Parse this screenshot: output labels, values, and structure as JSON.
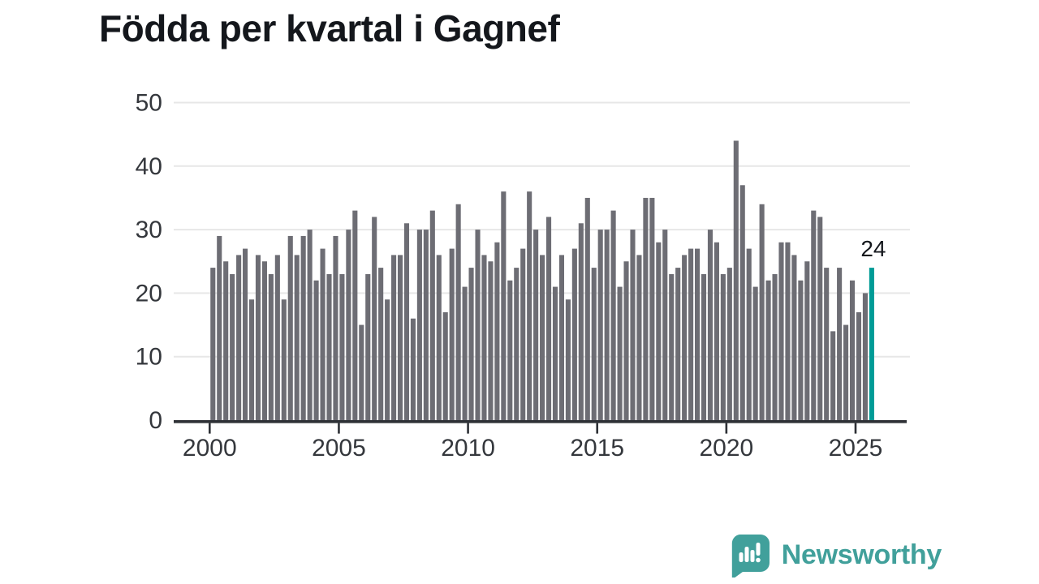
{
  "title": "Födda per kvartal i Gagnef",
  "annotation": {
    "label": "24"
  },
  "branding": {
    "name": "Newsworthy",
    "color": "#41a09b",
    "icon": "speech-bubble-bar-chart-icon"
  },
  "chart_data": {
    "type": "bar",
    "title": "Födda per kvartal i Gagnef",
    "xlabel": "",
    "ylabel": "",
    "x_unit": "quarter",
    "start_period": "2000 Q1",
    "end_period": "2025 Q3",
    "ylim": [
      0,
      50
    ],
    "y_ticks": [
      0,
      10,
      20,
      30,
      40,
      50
    ],
    "x_tick_years": [
      2000,
      2005,
      2010,
      2015,
      2020,
      2025
    ],
    "x_tick_labels": [
      "2000",
      "2005",
      "2010",
      "2015",
      "2020",
      "2025"
    ],
    "grid": true,
    "bar_color": "#6d6d74",
    "highlight": {
      "index": 102,
      "period": "2025 Q3",
      "value": 24,
      "label": "24",
      "color": "#009b96"
    },
    "series": [
      {
        "name": "Födda per kvartal",
        "values": [
          24,
          29,
          25,
          23,
          26,
          27,
          19,
          26,
          25,
          23,
          26,
          19,
          29,
          26,
          29,
          30,
          22,
          27,
          23,
          29,
          23,
          30,
          33,
          15,
          23,
          32,
          24,
          19,
          26,
          26,
          31,
          16,
          30,
          30,
          33,
          26,
          17,
          27,
          34,
          21,
          24,
          30,
          26,
          25,
          28,
          36,
          22,
          24,
          27,
          36,
          30,
          26,
          32,
          21,
          26,
          19,
          27,
          31,
          35,
          24,
          30,
          30,
          33,
          21,
          25,
          30,
          26,
          35,
          35,
          28,
          30,
          23,
          24,
          26,
          27,
          27,
          23,
          30,
          28,
          23,
          24,
          44,
          37,
          27,
          21,
          34,
          22,
          23,
          28,
          28,
          26,
          22,
          25,
          33,
          32,
          24,
          14,
          24,
          15,
          22,
          17,
          20,
          24
        ]
      }
    ]
  }
}
